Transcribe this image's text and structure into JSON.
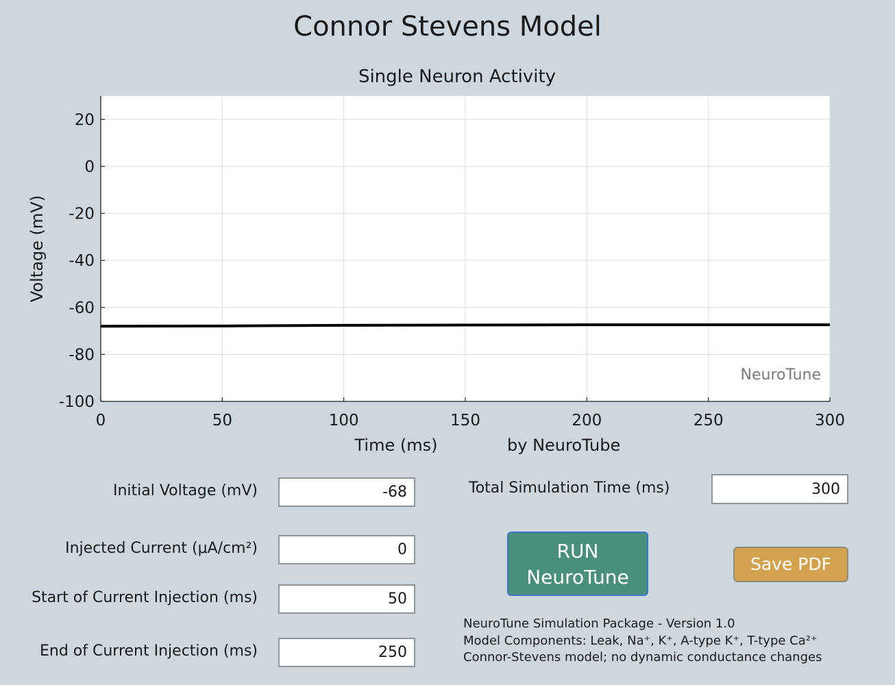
{
  "window": {
    "title": "Connor Stevens Model"
  },
  "chart_data": {
    "type": "line",
    "title": "Single Neuron Activity",
    "xlabel": "Time (ms)",
    "ylabel": "Voltage (mV)",
    "credit": "by NeuroTube",
    "watermark": "NeuroTune",
    "xlim": [
      0,
      300
    ],
    "ylim": [
      -100,
      30
    ],
    "xticks": [
      0,
      50,
      100,
      150,
      200,
      250,
      300
    ],
    "yticks": [
      20,
      0,
      -20,
      -40,
      -60,
      -80,
      -100
    ],
    "grid": true,
    "series": [
      {
        "x": [
          0,
          50,
          100,
          150,
          200,
          250,
          300
        ],
        "y": [
          -68,
          -67.9,
          -67.6,
          -67.5,
          -67.4,
          -67.4,
          -67.4
        ],
        "color": "#000000"
      }
    ]
  },
  "controls": {
    "initial_voltage": {
      "label": "Initial Voltage (mV)",
      "value": "-68"
    },
    "injected_current": {
      "label": "Injected Current (μA/cm²)",
      "value": "0"
    },
    "start_injection": {
      "label": "Start of Current Injection (ms)",
      "value": "50"
    },
    "end_injection": {
      "label": "End of Current Injection (ms)",
      "value": "250"
    },
    "total_time": {
      "label": "Total Simulation Time (ms)",
      "value": "300"
    }
  },
  "buttons": {
    "run_line1": "RUN",
    "run_line2": "NeuroTune",
    "save": "Save PDF",
    "run_color": "#4a8f7c",
    "save_color": "#d3a24e"
  },
  "info": {
    "line1": "NeuroTune Simulation Package - Version 1.0",
    "line2": "Model Components: Leak, Na⁺, K⁺, A-type K⁺, T-type Ca²⁺",
    "line3": "Connor-Stevens model; no dynamic conductance changes"
  }
}
